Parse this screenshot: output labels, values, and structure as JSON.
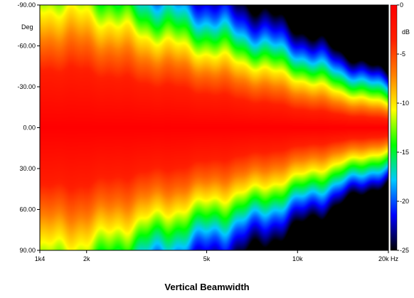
{
  "chart_data": {
    "type": "heatmap",
    "title": "Vertical Beamwidth",
    "x_axis": {
      "scale": "log",
      "range_hz": [
        1400,
        20000
      ],
      "ticks": [
        {
          "value": 1400,
          "label": "1k4"
        },
        {
          "value": 2000,
          "label": "2k"
        },
        {
          "value": 5000,
          "label": "5k"
        },
        {
          "value": 10000,
          "label": "10k"
        },
        {
          "value": 20000,
          "label": "20k Hz"
        }
      ]
    },
    "y_axis": {
      "unit_label": "Deg",
      "range_deg": [
        -90,
        90
      ],
      "ticks": [
        {
          "value": -90,
          "label": "-90.00"
        },
        {
          "value": -60,
          "label": "-60.00"
        },
        {
          "value": -30,
          "label": "-30.00"
        },
        {
          "value": 0,
          "label": "0.00"
        },
        {
          "value": 30,
          "label": "30.00"
        },
        {
          "value": 60,
          "label": "60.00"
        },
        {
          "value": 90,
          "label": "90.00"
        }
      ]
    },
    "colorbar": {
      "unit_label": "dB",
      "range_db": [
        -25,
        0
      ],
      "ticks": [
        {
          "value": 0,
          "label": "0"
        },
        {
          "value": -5,
          "label": "-5"
        },
        {
          "value": -10,
          "label": "-10"
        },
        {
          "value": -15,
          "label": "-15"
        },
        {
          "value": -20,
          "label": "-20"
        },
        {
          "value": -25,
          "label": "-25"
        }
      ],
      "stops": [
        "#000000",
        "#0000ff",
        "#00c8ff",
        "#00ff00",
        "#ffff00",
        "#ff8000",
        "#ff2000",
        "#ff0000"
      ]
    },
    "grid": false,
    "contours": {
      "frequencies_hz": [
        1400,
        2000,
        2500,
        3000,
        4000,
        5000,
        7000,
        10000,
        14000,
        20000
      ],
      "angle_deg_at_minus_3db": [
        40,
        38,
        33,
        30,
        26,
        22,
        17,
        12,
        8,
        5
      ],
      "angle_deg_at_minus_6db": [
        60,
        58,
        52,
        47,
        42,
        37,
        30,
        22,
        15,
        10
      ],
      "angle_deg_at_minus_10db": [
        84,
        80,
        72,
        66,
        58,
        52,
        44,
        34,
        24,
        16
      ],
      "angle_deg_at_minus_15db": [
        110,
        105,
        92,
        84,
        75,
        68,
        58,
        46,
        34,
        24
      ],
      "angle_deg_at_minus_20db": [
        140,
        132,
        115,
        104,
        93,
        84,
        72,
        58,
        44,
        32
      ]
    }
  }
}
